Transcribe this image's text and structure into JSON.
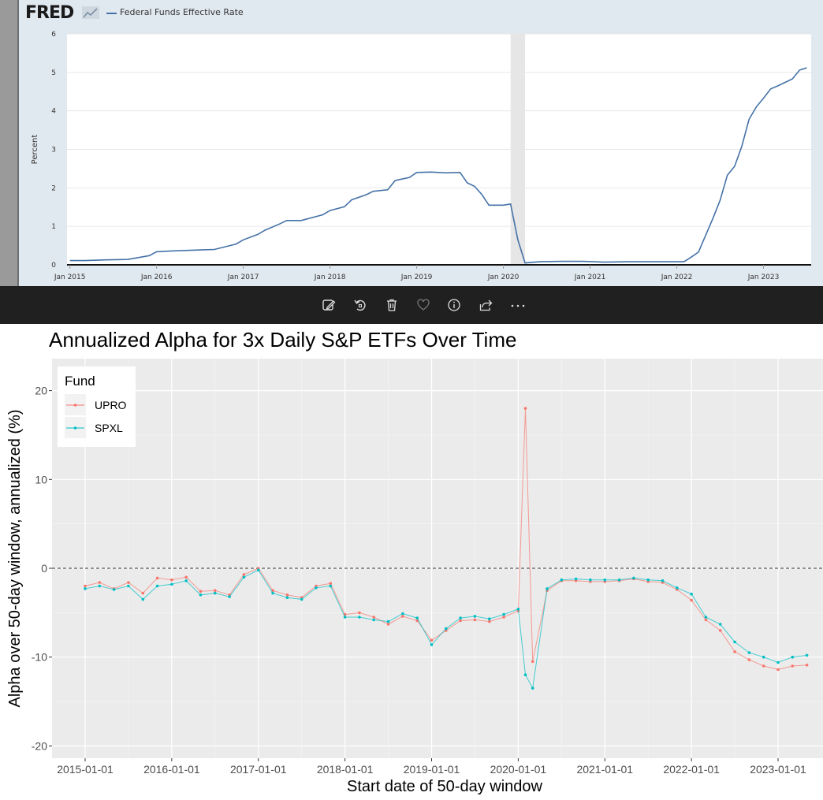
{
  "fred": {
    "brand": "FRED",
    "legend": "Federal Funds Effective Rate",
    "series_color": "#4572a7"
  },
  "toolbar": {
    "buttons": [
      {
        "name": "edit-image-button",
        "icon": "edit-icon"
      },
      {
        "name": "rotate-button",
        "icon": "rotate-icon"
      },
      {
        "name": "delete-button",
        "icon": "trash-icon"
      },
      {
        "name": "favorite-button",
        "icon": "heart-icon"
      },
      {
        "name": "info-button",
        "icon": "info-icon"
      },
      {
        "name": "share-button",
        "icon": "share-icon"
      },
      {
        "name": "more-options-button",
        "icon": "more-icon"
      }
    ]
  },
  "chart_data": [
    {
      "type": "line",
      "ylabel": "Percent",
      "ylim": [
        0,
        6
      ],
      "yticks": [
        0,
        1,
        2,
        3,
        4,
        5,
        6
      ],
      "xtick_labels": [
        "Jan 2015",
        "Jan 2016",
        "Jan 2017",
        "Jan 2018",
        "Jan 2019",
        "Jan 2020",
        "Jan 2021",
        "Jan 2022",
        "Jan 2023"
      ],
      "recession_shading": [
        "2020-02",
        "2020-04"
      ],
      "grid": true,
      "series": [
        {
          "color": "#4572a7",
          "x": [
            "2015-01",
            "2015-03",
            "2015-06",
            "2015-09",
            "2015-12",
            "2016-01",
            "2016-03",
            "2016-06",
            "2016-09",
            "2016-12",
            "2017-01",
            "2017-03",
            "2017-04",
            "2017-06",
            "2017-07",
            "2017-09",
            "2017-12",
            "2018-01",
            "2018-03",
            "2018-04",
            "2018-06",
            "2018-07",
            "2018-09",
            "2018-10",
            "2018-12",
            "2019-01",
            "2019-03",
            "2019-05",
            "2019-07",
            "2019-08",
            "2019-09",
            "2019-10",
            "2019-11",
            "2019-12",
            "2020-01",
            "2020-02",
            "2020-03",
            "2020-04",
            "2020-06",
            "2020-09",
            "2020-12",
            "2021-03",
            "2021-06",
            "2021-09",
            "2021-12",
            "2022-01",
            "2022-02",
            "2022-03",
            "2022-04",
            "2022-05",
            "2022-06",
            "2022-07",
            "2022-08",
            "2022-09",
            "2022-10",
            "2022-11",
            "2022-12",
            "2023-01",
            "2023-02",
            "2023-03",
            "2023-05",
            "2023-06",
            "2023-07"
          ],
          "y": [
            0.11,
            0.11,
            0.13,
            0.14,
            0.24,
            0.34,
            0.36,
            0.38,
            0.4,
            0.54,
            0.65,
            0.79,
            0.9,
            1.06,
            1.15,
            1.15,
            1.3,
            1.41,
            1.51,
            1.69,
            1.82,
            1.91,
            1.95,
            2.19,
            2.27,
            2.4,
            2.41,
            2.39,
            2.4,
            2.13,
            2.04,
            1.83,
            1.55,
            1.55,
            1.55,
            1.58,
            0.65,
            0.05,
            0.08,
            0.09,
            0.09,
            0.07,
            0.08,
            0.08,
            0.08,
            0.08,
            0.08,
            0.2,
            0.33,
            0.77,
            1.21,
            1.68,
            2.33,
            2.56,
            3.08,
            3.78,
            4.1,
            4.33,
            4.57,
            4.65,
            4.83,
            5.06,
            5.12
          ]
        }
      ]
    },
    {
      "type": "scatter",
      "title": "Annualized Alpha for 3x Daily S&P ETFs Over Time",
      "xlabel": "Start date of 50-day window",
      "ylabel": "Alpha over 50-day window, annualized (%)",
      "ylim": [
        -20,
        22
      ],
      "yticks": [
        -20,
        -10,
        0,
        10,
        20
      ],
      "xtick_labels": [
        "2015-01-01",
        "2016-01-01",
        "2017-01-01",
        "2018-01-01",
        "2019-01-01",
        "2020-01-01",
        "2021-01-01",
        "2022-01-01",
        "2023-01-01"
      ],
      "reference_line": 0,
      "grid": true,
      "legend": {
        "title": "Fund",
        "placement": "top-left"
      },
      "series": [
        {
          "name": "UPRO",
          "color": "#f8766d",
          "x": [
            "2015-01",
            "2015-03",
            "2015-05",
            "2015-07",
            "2015-09",
            "2015-11",
            "2016-01",
            "2016-03",
            "2016-05",
            "2016-07",
            "2016-09",
            "2016-11",
            "2017-01",
            "2017-03",
            "2017-05",
            "2017-07",
            "2017-09",
            "2017-11",
            "2018-01",
            "2018-03",
            "2018-05",
            "2018-07",
            "2018-09",
            "2018-11",
            "2019-01",
            "2019-03",
            "2019-05",
            "2019-07",
            "2019-09",
            "2019-11",
            "2020-01",
            "2020-02",
            "2020-03",
            "2020-05",
            "2020-07",
            "2020-09",
            "2020-11",
            "2021-01",
            "2021-03",
            "2021-05",
            "2021-07",
            "2021-09",
            "2021-11",
            "2022-01",
            "2022-03",
            "2022-05",
            "2022-07",
            "2022-09",
            "2022-11",
            "2023-01",
            "2023-03",
            "2023-05"
          ],
          "y": [
            -2.0,
            -1.6,
            -2.3,
            -1.6,
            -2.8,
            -1.1,
            -1.3,
            -1.0,
            -2.6,
            -2.5,
            -3.0,
            -0.7,
            0.0,
            -2.5,
            -3.0,
            -3.3,
            -2.0,
            -1.7,
            -5.2,
            -5.0,
            -5.5,
            -6.3,
            -5.4,
            -5.9,
            -8.1,
            -7.0,
            -5.9,
            -5.8,
            -6.0,
            -5.5,
            -4.8,
            18.0,
            -10.5,
            -2.5,
            -1.4,
            -1.4,
            -1.5,
            -1.5,
            -1.4,
            -1.2,
            -1.5,
            -1.6,
            -2.4,
            -3.6,
            -5.8,
            -7.0,
            -9.4,
            -10.3,
            -11.0,
            -11.4,
            -11.0,
            -10.9
          ]
        },
        {
          "name": "SPXL",
          "color": "#00bfc4",
          "x": [
            "2015-01",
            "2015-03",
            "2015-05",
            "2015-07",
            "2015-09",
            "2015-11",
            "2016-01",
            "2016-03",
            "2016-05",
            "2016-07",
            "2016-09",
            "2016-11",
            "2017-01",
            "2017-03",
            "2017-05",
            "2017-07",
            "2017-09",
            "2017-11",
            "2018-01",
            "2018-03",
            "2018-05",
            "2018-07",
            "2018-09",
            "2018-11",
            "2019-01",
            "2019-03",
            "2019-05",
            "2019-07",
            "2019-09",
            "2019-11",
            "2020-01",
            "2020-02",
            "2020-03",
            "2020-05",
            "2020-07",
            "2020-09",
            "2020-11",
            "2021-01",
            "2021-03",
            "2021-05",
            "2021-07",
            "2021-09",
            "2021-11",
            "2022-01",
            "2022-03",
            "2022-05",
            "2022-07",
            "2022-09",
            "2022-11",
            "2023-01",
            "2023-03",
            "2023-05"
          ],
          "y": [
            -2.3,
            -2.0,
            -2.4,
            -2.0,
            -3.5,
            -2.0,
            -1.8,
            -1.4,
            -3.0,
            -2.8,
            -3.2,
            -1.0,
            -0.2,
            -2.8,
            -3.3,
            -3.5,
            -2.2,
            -2.0,
            -5.5,
            -5.5,
            -5.8,
            -6.0,
            -5.1,
            -5.6,
            -8.6,
            -6.8,
            -5.6,
            -5.4,
            -5.7,
            -5.2,
            -4.6,
            -12.0,
            -13.5,
            -2.3,
            -1.3,
            -1.2,
            -1.3,
            -1.3,
            -1.3,
            -1.1,
            -1.3,
            -1.4,
            -2.2,
            -2.9,
            -5.5,
            -6.3,
            -8.3,
            -9.5,
            -10.0,
            -10.6,
            -10.0,
            -9.8
          ]
        }
      ]
    }
  ]
}
